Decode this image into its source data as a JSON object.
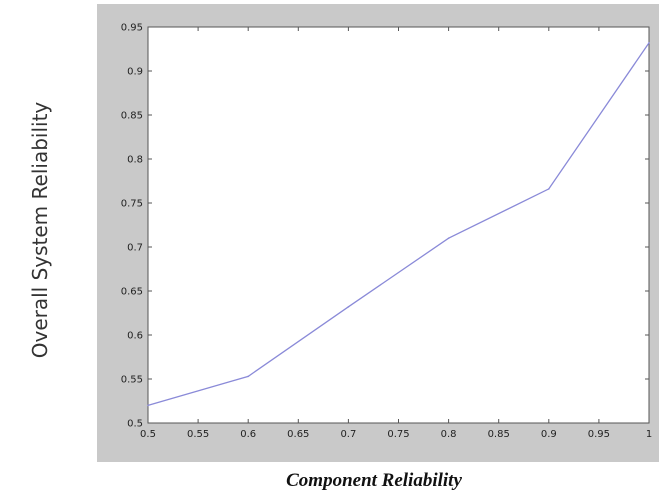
{
  "chart_data": {
    "type": "line",
    "title": "",
    "xlabel": "Component Reliability",
    "ylabel": "Overall System Reliability",
    "xlim": [
      0.5,
      1.0
    ],
    "ylim": [
      0.5,
      0.95
    ],
    "grid": false,
    "x_ticks": [
      "0.5",
      "0.55",
      "0.6",
      "0.65",
      "0.7",
      "0.75",
      "0.8",
      "0.85",
      "0.9",
      "0.95",
      "1"
    ],
    "y_ticks": [
      "0.5",
      "0.55",
      "0.6",
      "0.65",
      "0.7",
      "0.75",
      "0.8",
      "0.85",
      "0.9",
      "0.95"
    ],
    "series": [
      {
        "color": "#8a8ad8",
        "x": [
          0.5,
          0.6,
          0.7,
          0.8,
          0.9,
          1.0
        ],
        "y": [
          0.52,
          0.553,
          0.632,
          0.71,
          0.766,
          0.932
        ]
      }
    ]
  }
}
